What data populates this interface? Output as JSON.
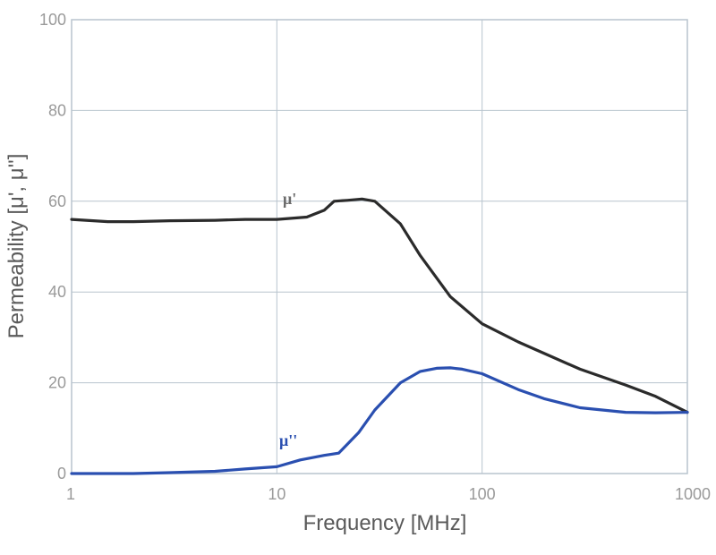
{
  "chart_data": {
    "type": "line",
    "title": "",
    "xlabel": "Frequency [MHz]",
    "ylabel": "Permeability [μ', μ'']",
    "xscale": "log",
    "xlim": [
      1,
      1000
    ],
    "ylim": [
      0,
      100
    ],
    "xticks": [
      1,
      10,
      100,
      1000
    ],
    "xtick_labels": [
      "1",
      "10",
      "100",
      "1000"
    ],
    "yticks": [
      0,
      20,
      40,
      60,
      80,
      100
    ],
    "ytick_labels": [
      "0",
      "20",
      "40",
      "60",
      "80",
      "100"
    ],
    "grid": true,
    "legend": "none (inline curve labels)",
    "series": [
      {
        "name": "μ'",
        "color": "#2b2b2b",
        "x": [
          1,
          1.5,
          2,
          3,
          5,
          7,
          10,
          14,
          17,
          19,
          22,
          26,
          30,
          40,
          50,
          70,
          100,
          150,
          200,
          300,
          500,
          700,
          1000
        ],
        "y": [
          56,
          55.5,
          55.5,
          55.7,
          55.8,
          56,
          56,
          56.5,
          58,
          60,
          60.2,
          60.5,
          60,
          55,
          48,
          39,
          33,
          29,
          26.5,
          23,
          19.5,
          17,
          13.5
        ]
      },
      {
        "name": "μ''",
        "color": "#2a4fb0",
        "x": [
          1,
          2,
          3,
          5,
          7,
          10,
          13,
          17,
          20,
          25,
          30,
          40,
          50,
          60,
          70,
          80,
          100,
          150,
          200,
          300,
          500,
          700,
          1000
        ],
        "y": [
          0,
          0,
          0.2,
          0.5,
          1,
          1.5,
          3,
          4,
          4.5,
          9,
          14,
          20,
          22.5,
          23.2,
          23.3,
          23,
          22,
          18.5,
          16.5,
          14.5,
          13.5,
          13.4,
          13.5
        ]
      }
    ]
  }
}
